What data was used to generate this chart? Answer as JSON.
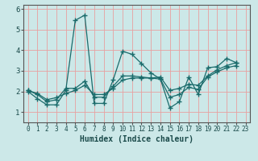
{
  "xlabel": "Humidex (Indice chaleur)",
  "background_color": "#cce8e8",
  "line_color": "#1a6b6b",
  "xlim": [
    -0.5,
    23.5
  ],
  "ylim": [
    0.5,
    6.2
  ],
  "xticks": [
    0,
    1,
    2,
    3,
    4,
    5,
    6,
    7,
    8,
    9,
    10,
    11,
    12,
    13,
    14,
    15,
    16,
    17,
    18,
    19,
    20,
    21,
    22,
    23
  ],
  "yticks": [
    1,
    2,
    3,
    4,
    5,
    6
  ],
  "series": [
    [
      2.0,
      1.65,
      1.35,
      1.35,
      2.05,
      5.45,
      5.7,
      1.42,
      1.42,
      2.55,
      3.95,
      3.8,
      3.35,
      2.9,
      2.6,
      1.2,
      1.5,
      2.7,
      1.85,
      3.15,
      3.2,
      3.6,
      3.4
    ],
    [
      2.05,
      1.85,
      1.5,
      1.6,
      2.15,
      2.15,
      2.5,
      1.72,
      1.72,
      2.25,
      2.75,
      2.75,
      2.7,
      2.65,
      2.6,
      1.72,
      1.85,
      2.2,
      2.1,
      2.7,
      2.95,
      3.15,
      3.25
    ],
    [
      2.05,
      1.9,
      1.6,
      1.7,
      1.9,
      2.05,
      2.3,
      1.85,
      1.85,
      2.15,
      2.55,
      2.65,
      2.65,
      2.65,
      2.7,
      2.05,
      2.15,
      2.35,
      2.3,
      2.75,
      3.05,
      3.25,
      3.4
    ]
  ],
  "x_values": [
    0,
    1,
    2,
    3,
    4,
    5,
    6,
    7,
    8,
    9,
    10,
    11,
    12,
    13,
    14,
    15,
    16,
    17,
    18,
    19,
    20,
    21,
    22
  ],
  "xlabel_fontsize": 7,
  "tick_fontsize": 6,
  "grid_line_color": "#e8a0a0",
  "plot_bg": "#cce8e8"
}
